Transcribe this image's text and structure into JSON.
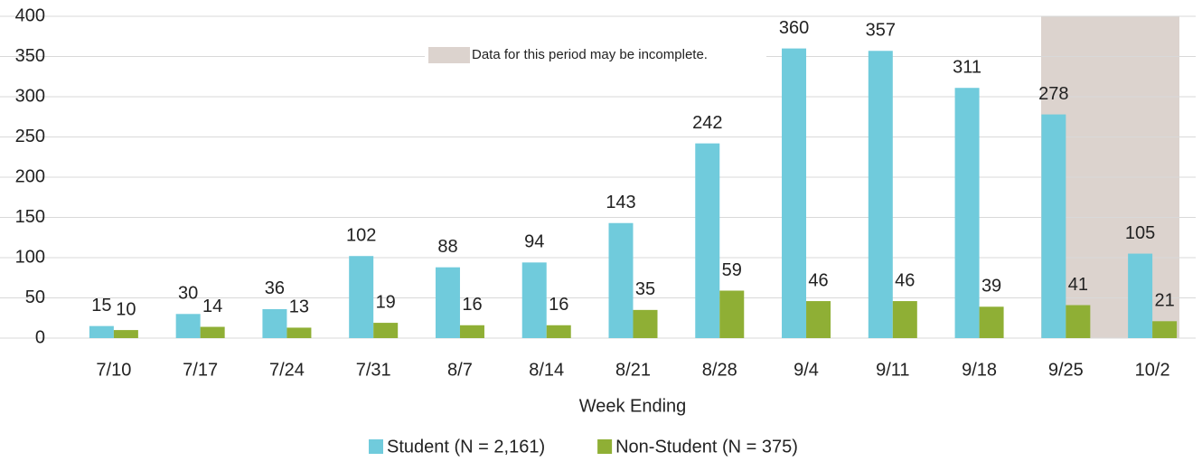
{
  "chart_data": {
    "type": "bar",
    "x_label": "Week Ending",
    "annotation": "Data for this period may be incomplete.",
    "categories": [
      "7/10",
      "7/17",
      "7/24",
      "7/31",
      "8/7",
      "8/14",
      "8/21",
      "8/28",
      "9/4",
      "9/11",
      "9/18",
      "9/25",
      "10/2"
    ],
    "series": [
      {
        "name": "Student (N = 2,161)",
        "color": "#70cbdc",
        "values": [
          15,
          30,
          36,
          102,
          88,
          94,
          143,
          242,
          360,
          357,
          311,
          278,
          105
        ]
      },
      {
        "name": "Non-Student (N = 375)",
        "color": "#8faf35",
        "values": [
          10,
          14,
          13,
          19,
          16,
          16,
          35,
          59,
          46,
          46,
          39,
          41,
          21
        ]
      }
    ],
    "ylim": [
      0,
      400
    ],
    "yticks": [
      0,
      50,
      100,
      150,
      200,
      250,
      300,
      350,
      400
    ],
    "grid": true
  }
}
